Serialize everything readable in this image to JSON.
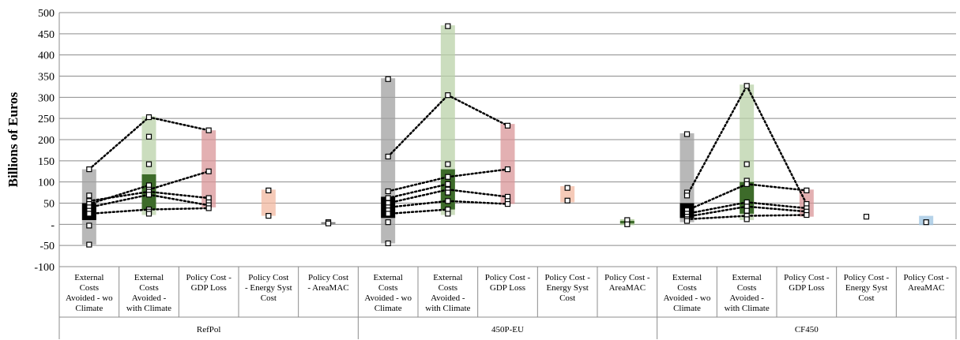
{
  "chart_data": {
    "type": "box-range",
    "ylabel": "Billions of Euros",
    "ylim": [
      -100,
      500
    ],
    "ytick_labels": [
      "500",
      "450",
      "400",
      "350",
      "300",
      "250",
      "200",
      "150",
      "100",
      "50",
      "-",
      "-50",
      "-100"
    ],
    "grid": true,
    "groups": [
      {
        "name": "RefPol",
        "categories": [
          {
            "label": [
              "External",
              "Costs",
              "Avoided - wo",
              "Climate"
            ],
            "color": "#a0a0a0",
            "range": [
              -48,
              130
            ],
            "iqr": [
              10,
              50
            ],
            "iqr_color": "#000000",
            "points": [
              130,
              68,
              55,
              48,
              40,
              32,
              25,
              -3,
              -48
            ]
          },
          {
            "label": [
              "External",
              "Costs",
              "Avoided -",
              "with Climate"
            ],
            "color": "#b9d2a8",
            "range": [
              22,
              255
            ],
            "iqr": [
              35,
              118
            ],
            "iqr_color": "#3d6b2a",
            "points": [
              253,
              207,
              142,
              92,
              82,
              77,
              70,
              35,
              30,
              25
            ]
          },
          {
            "label": [
              "Policy Cost -",
              "GDP Loss"
            ],
            "color": "#d99598",
            "range": [
              40,
              222
            ],
            "iqr": null,
            "iqr_color": null,
            "points": [
              222,
              125,
              62,
              52,
              45,
              38
            ]
          },
          {
            "label": [
              "Policy Cost",
              "- Energy Syst",
              "Cost"
            ],
            "color": "#f2b8a0",
            "range": [
              20,
              82
            ],
            "iqr": null,
            "iqr_color": null,
            "points": [
              80,
              20
            ]
          },
          {
            "label": [
              "Policy Cost",
              "- AreaMAC"
            ],
            "color": "#555555",
            "range": [
              1,
              5
            ],
            "iqr": null,
            "iqr_color": null,
            "points": [
              5,
              2
            ]
          }
        ]
      },
      {
        "name": "450P-EU",
        "categories": [
          {
            "label": [
              "External",
              "Costs",
              "Avoided - wo",
              "Climate"
            ],
            "color": "#a0a0a0",
            "range": [
              -45,
              345
            ],
            "iqr": [
              15,
              65
            ],
            "iqr_color": "#000000",
            "points": [
              343,
              160,
              78,
              62,
              50,
              40,
              33,
              25,
              5,
              -45
            ]
          },
          {
            "label": [
              "External",
              "Costs",
              "Avoided -",
              "with Climate"
            ],
            "color": "#b9d2a8",
            "range": [
              22,
              470
            ],
            "iqr": [
              35,
              130
            ],
            "iqr_color": "#3d6b2a",
            "points": [
              468,
              305,
              142,
              112,
              95,
              82,
              75,
              55,
              35,
              25
            ]
          },
          {
            "label": [
              "Policy Cost -",
              "GDP Loss"
            ],
            "color": "#d99598",
            "range": [
              48,
              237
            ],
            "iqr": null,
            "iqr_color": null,
            "points": [
              233,
              130,
              65,
              55,
              48
            ]
          },
          {
            "label": [
              "Policy Cost -",
              "Energy Syst",
              "Cost"
            ],
            "color": "#f2b8a0",
            "range": [
              52,
              90
            ],
            "iqr": null,
            "iqr_color": null,
            "points": [
              86,
              56
            ]
          },
          {
            "label": [
              "Policy Cost -",
              "AreaMAC"
            ],
            "color": "#a8c890",
            "range": [
              -2,
              12
            ],
            "iqr": [
              2,
              8
            ],
            "iqr_color": "#3d6b2a",
            "points": [
              10,
              0
            ]
          }
        ]
      },
      {
        "name": "CF450",
        "categories": [
          {
            "label": [
              "External",
              "Costs",
              "Avoided - wo",
              "Climate"
            ],
            "color": "#a0a0a0",
            "range": [
              5,
              215
            ],
            "iqr": [
              15,
              50
            ],
            "iqr_color": "#000000",
            "points": [
              213,
              75,
              68,
              33,
              25,
              18,
              12,
              8
            ]
          },
          {
            "label": [
              "External",
              "Costs",
              "Avoided -",
              "with Climate"
            ],
            "color": "#b9d2a8",
            "range": [
              10,
              330
            ],
            "iqr": [
              25,
              100
            ],
            "iqr_color": "#3d6b2a",
            "points": [
              327,
              142,
              103,
              95,
              52,
              42,
              32,
              20,
              12
            ]
          },
          {
            "label": [
              "Policy Cost -",
              "GDP Loss"
            ],
            "color": "#d99598",
            "range": [
              18,
              82
            ],
            "iqr": null,
            "iqr_color": null,
            "points": [
              80,
              48,
              38,
              30,
              22
            ]
          },
          {
            "label": [
              "Policy Cost -",
              "Energy Syst",
              "Cost"
            ],
            "color": "#f2b8a0",
            "range": null,
            "iqr": null,
            "iqr_color": null,
            "points": [
              18
            ]
          },
          {
            "label": [
              "Policy Cost -",
              "AreaMAC"
            ],
            "color": "#9cc3e0",
            "range": [
              -2,
              20
            ],
            "iqr": null,
            "iqr_color": null,
            "points": [
              5
            ]
          }
        ]
      }
    ],
    "connectors": [
      {
        "group": 0,
        "from": 0,
        "to": 1,
        "pairs": [
          [
            130,
            253
          ],
          [
            55,
            77
          ],
          [
            48,
            92
          ],
          [
            40,
            70
          ],
          [
            25,
            35
          ]
        ]
      },
      {
        "group": 0,
        "from": 1,
        "to": 2,
        "pairs": [
          [
            253,
            222
          ],
          [
            82,
            125
          ],
          [
            77,
            62
          ],
          [
            70,
            45
          ],
          [
            35,
            38
          ]
        ]
      },
      {
        "group": 1,
        "from": 0,
        "to": 1,
        "pairs": [
          [
            160,
            305
          ],
          [
            78,
            112
          ],
          [
            62,
            95
          ],
          [
            50,
            82
          ],
          [
            40,
            55
          ],
          [
            25,
            35
          ]
        ]
      },
      {
        "group": 1,
        "from": 1,
        "to": 2,
        "pairs": [
          [
            305,
            233
          ],
          [
            112,
            130
          ],
          [
            82,
            65
          ],
          [
            55,
            48
          ]
        ]
      },
      {
        "group": 2,
        "from": 0,
        "to": 1,
        "pairs": [
          [
            68,
            327
          ],
          [
            33,
            95
          ],
          [
            25,
            52
          ],
          [
            18,
            42
          ],
          [
            12,
            20
          ]
        ]
      },
      {
        "group": 2,
        "from": 1,
        "to": 2,
        "pairs": [
          [
            327,
            48
          ],
          [
            95,
            80
          ],
          [
            52,
            38
          ],
          [
            42,
            30
          ],
          [
            20,
            22
          ]
        ]
      }
    ]
  }
}
